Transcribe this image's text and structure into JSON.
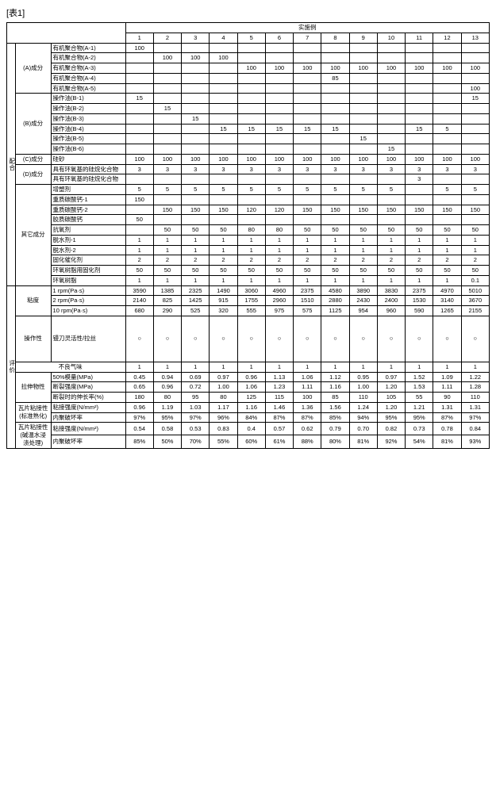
{
  "title": "[表1]",
  "super_header": "实施例",
  "col_nums": [
    "1",
    "2",
    "3",
    "4",
    "5",
    "6",
    "7",
    "8",
    "9",
    "10",
    "11",
    "12",
    "13"
  ],
  "sec_mix": "配合",
  "sec_eval": "评价",
  "grp_A": "(A)成分",
  "grp_B": "(B)成分",
  "grp_C": "(C)成分",
  "grp_D": "(D)成分",
  "grp_other": "其它成分",
  "grp_visc": "粘度",
  "grp_work": "操作性",
  "grp_odor": "不良气味",
  "grp_tensile": "拉伸物性",
  "grp_tile_std": "瓦片粘接性(标准熟化)",
  "grp_tile_wet": "瓦片粘接性\n(碱温水浸渍处理)",
  "rows": {
    "a1": {
      "label": "有机聚合物(A-1)",
      "v": [
        "100",
        "",
        "",
        "",
        "",
        "",
        "",
        "",
        "",
        "",
        "",
        "",
        ""
      ]
    },
    "a2": {
      "label": "有机聚合物(A-2)",
      "v": [
        "",
        "100",
        "100",
        "100",
        "",
        "",
        "",
        "",
        "",
        "",
        "",
        "",
        ""
      ]
    },
    "a3": {
      "label": "有机聚合物(A-3)",
      "v": [
        "",
        "",
        "",
        "",
        "100",
        "100",
        "100",
        "100",
        "100",
        "100",
        "100",
        "100",
        "100"
      ]
    },
    "a4": {
      "label": "有机聚合物(A-4)",
      "v": [
        "",
        "",
        "",
        "",
        "",
        "",
        "",
        "85",
        "",
        "",
        "",
        "",
        ""
      ]
    },
    "a5": {
      "label": "有机聚合物(A-5)",
      "v": [
        "",
        "",
        "",
        "",
        "",
        "",
        "",
        "",
        "",
        "",
        "",
        "",
        "100"
      ]
    },
    "b1": {
      "label": "操作油(B-1)",
      "v": [
        "15",
        "",
        "",
        "",
        "",
        "",
        "",
        "",
        "",
        "",
        "",
        "",
        "15"
      ]
    },
    "b2": {
      "label": "操作油(B-2)",
      "v": [
        "",
        "15",
        "",
        "",
        "",
        "",
        "",
        "",
        "",
        "",
        "",
        "",
        ""
      ]
    },
    "b3": {
      "label": "操作油(B-3)",
      "v": [
        "",
        "",
        "15",
        "",
        "",
        "",
        "",
        "",
        "",
        "",
        "",
        "",
        ""
      ]
    },
    "b4": {
      "label": "操作油(B-4)",
      "v": [
        "",
        "",
        "",
        "15",
        "15",
        "15",
        "15",
        "15",
        "",
        "",
        "15",
        "5",
        ""
      ]
    },
    "b5": {
      "label": "操作油(B-5)",
      "v": [
        "",
        "",
        "",
        "",
        "",
        "",
        "",
        "",
        "15",
        "",
        "",
        "",
        ""
      ]
    },
    "b6": {
      "label": "操作油(B-6)",
      "v": [
        "",
        "",
        "",
        "",
        "",
        "",
        "",
        "",
        "",
        "15",
        "",
        "",
        ""
      ]
    },
    "c": {
      "label": "硅砂",
      "v": [
        "100",
        "100",
        "100",
        "100",
        "100",
        "100",
        "100",
        "100",
        "100",
        "100",
        "100",
        "100",
        "100"
      ]
    },
    "d1": {
      "label": "具有环氧基的硅烷化合物",
      "v": [
        "3",
        "3",
        "3",
        "3",
        "3",
        "3",
        "3",
        "3",
        "3",
        "3",
        "3",
        "3",
        "3"
      ]
    },
    "d2": {
      "label": "具有环氧基的硅烷化合物",
      "v": [
        "",
        "",
        "",
        "",
        "",
        "",
        "",
        "",
        "",
        "",
        "3",
        "",
        ""
      ]
    },
    "o1": {
      "label": "增塑剂",
      "v": [
        "5",
        "5",
        "5",
        "5",
        "5",
        "5",
        "5",
        "5",
        "5",
        "5",
        "",
        "5",
        "5"
      ]
    },
    "o2": {
      "label": "重质碳酸钙-1",
      "v": [
        "150",
        "",
        "",
        "",
        "",
        "",
        "",
        "",
        "",
        "",
        "",
        "",
        ""
      ]
    },
    "o3": {
      "label": "重质碳酸钙-2",
      "v": [
        "",
        "150",
        "150",
        "150",
        "120",
        "120",
        "150",
        "150",
        "150",
        "150",
        "150",
        "150",
        "150"
      ]
    },
    "o4": {
      "label": "胶质碳酸钙",
      "v": [
        "50",
        "",
        "",
        "",
        "",
        "",
        "",
        "",
        "",
        "",
        "",
        "",
        ""
      ]
    },
    "o5": {
      "label": "抗氧剂",
      "v": [
        "",
        "50",
        "50",
        "50",
        "80",
        "80",
        "50",
        "50",
        "50",
        "50",
        "50",
        "50",
        "50"
      ]
    },
    "o6": {
      "label": "脱水剂-1",
      "v": [
        "1",
        "1",
        "1",
        "1",
        "1",
        "1",
        "1",
        "1",
        "1",
        "1",
        "1",
        "1",
        "1"
      ]
    },
    "o7": {
      "label": "脱水剂-2",
      "v": [
        "1",
        "1",
        "1",
        "1",
        "1",
        "1",
        "1",
        "1",
        "1",
        "1",
        "1",
        "1",
        "1"
      ]
    },
    "o8": {
      "label": "固化催化剂",
      "v": [
        "2",
        "2",
        "2",
        "2",
        "2",
        "2",
        "2",
        "2",
        "2",
        "2",
        "2",
        "2",
        "2"
      ]
    },
    "o9": {
      "label": "环氧树脂用固化剂",
      "v": [
        "50",
        "50",
        "50",
        "50",
        "50",
        "50",
        "50",
        "50",
        "50",
        "50",
        "50",
        "50",
        "50"
      ]
    },
    "o10": {
      "label": "环氧树脂",
      "v": [
        "1",
        "1",
        "1",
        "1",
        "1",
        "1",
        "1",
        "1",
        "1",
        "1",
        "1",
        "1",
        "0.1"
      ]
    },
    "v1": {
      "label": "1 rpm(Pa·s)",
      "v": [
        "3590",
        "1385",
        "2325",
        "1490",
        "3060",
        "4960",
        "2375",
        "4580",
        "3890",
        "3830",
        "2375",
        "4970",
        "5010"
      ]
    },
    "v2": {
      "label": "2 rpm(Pa·s)",
      "v": [
        "2140",
        "825",
        "1425",
        "915",
        "1755",
        "2960",
        "1510",
        "2880",
        "2430",
        "2400",
        "1530",
        "3140",
        "3670"
      ]
    },
    "v3": {
      "label": "10 rpm(Pa·s)",
      "v": [
        "680",
        "290",
        "525",
        "320",
        "555",
        "975",
        "575",
        "1125",
        "954",
        "960",
        "590",
        "1265",
        "2155"
      ]
    },
    "wk": {
      "label": "镘刀灵活性/拉丝",
      "v": [
        "○",
        "○",
        "○",
        "○",
        "○",
        "○",
        "○",
        "○",
        "○",
        "○",
        "○",
        "○",
        "○"
      ]
    },
    "odor": {
      "label": "",
      "v": [
        "1",
        "1",
        "1",
        "1",
        "1",
        "1",
        "1",
        "1",
        "1",
        "1",
        "1",
        "1",
        "1"
      ]
    },
    "t1": {
      "label": "50%模量(MPa)",
      "v": [
        "0.45",
        "0.94",
        "0.69",
        "0.97",
        "0.96",
        "1.13",
        "1.06",
        "1.12",
        "0.95",
        "0.97",
        "1.52",
        "1.09",
        "1.22"
      ]
    },
    "t2": {
      "label": "断裂强度(MPa)",
      "v": [
        "0.65",
        "0.96",
        "0.72",
        "1.00",
        "1.06",
        "1.23",
        "1.11",
        "1.16",
        "1.00",
        "1.20",
        "1.53",
        "1.11",
        "1.28"
      ]
    },
    "t3": {
      "label": "断裂时的伸长率(%)",
      "v": [
        "180",
        "80",
        "95",
        "80",
        "125",
        "115",
        "100",
        "85",
        "110",
        "105",
        "55",
        "90",
        "110"
      ]
    },
    "s1": {
      "label": "粘接强度(N/mm²)",
      "v": [
        "0.96",
        "1.19",
        "1.03",
        "1.17",
        "1.16",
        "1.46",
        "1.36",
        "1.56",
        "1.24",
        "1.20",
        "1.21",
        "1.31",
        "1.31"
      ]
    },
    "s2": {
      "label": "内聚破坏率",
      "v": [
        "97%",
        "95%",
        "97%",
        "96%",
        "84%",
        "87%",
        "87%",
        "85%",
        "94%",
        "95%",
        "95%",
        "87%",
        "97%"
      ]
    },
    "w1": {
      "label": "粘接强度(N/mm²)",
      "v": [
        "0.54",
        "0.58",
        "0.53",
        "0.83",
        "0.4",
        "0.57",
        "0.62",
        "0.79",
        "0.70",
        "0.82",
        "0.73",
        "0.78",
        "0.84"
      ]
    },
    "w2": {
      "label": "内聚破坏率",
      "v": [
        "85%",
        "50%",
        "70%",
        "55%",
        "60%",
        "61%",
        "88%",
        "80%",
        "81%",
        "92%",
        "54%",
        "81%",
        "93%"
      ]
    }
  }
}
